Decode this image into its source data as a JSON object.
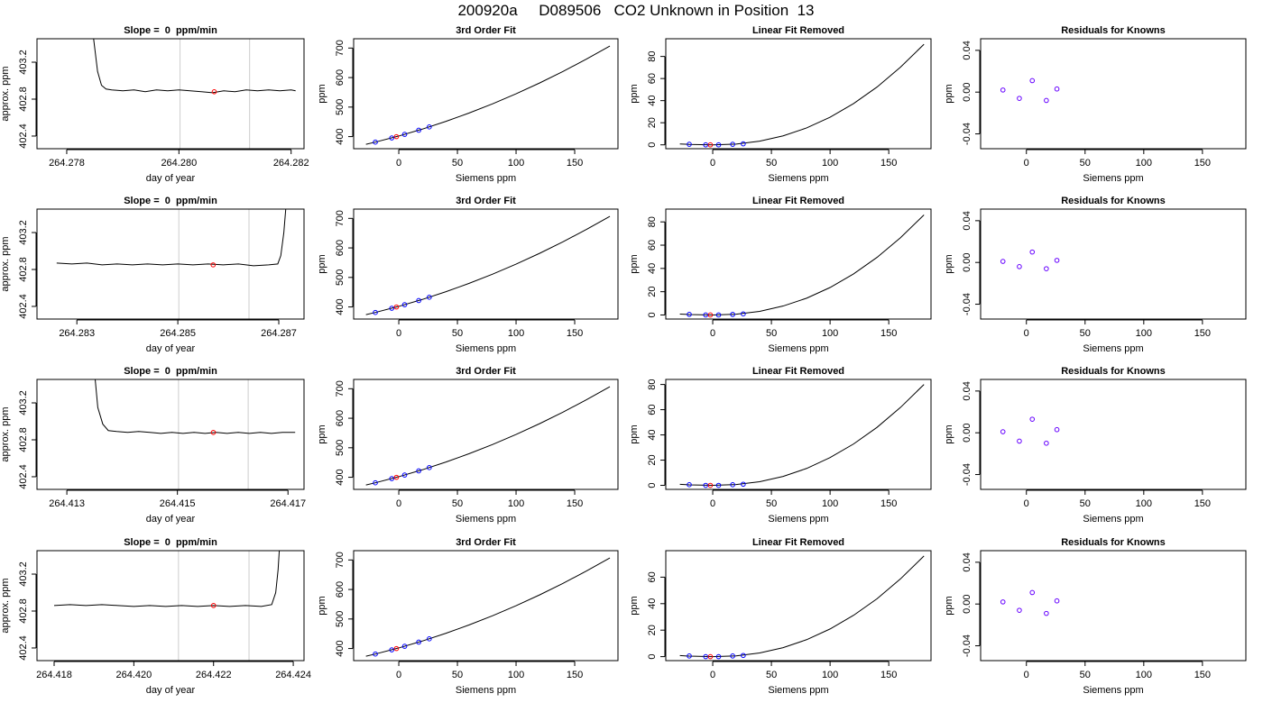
{
  "title": "200920a     D089506   CO2 Unknown in Position  13",
  "chart_data": [
    {
      "type": "line",
      "title": "Slope =  0  ppm/min",
      "xlabel": "day of year",
      "ylabel": "approx. ppm",
      "x": [
        264.27845,
        264.27855,
        264.27862,
        264.2787,
        264.2788,
        264.279,
        264.2792,
        264.2794,
        264.2796,
        264.2798,
        264.28,
        264.2802,
        264.2804,
        264.2806,
        264.2808,
        264.281,
        264.2812,
        264.2814,
        264.2816,
        264.2818,
        264.282,
        264.28208
      ],
      "values": [
        403.6,
        403.1,
        402.95,
        402.91,
        402.9,
        402.89,
        402.9,
        402.88,
        402.9,
        402.89,
        402.9,
        402.89,
        402.88,
        402.87,
        402.89,
        402.88,
        402.9,
        402.89,
        402.9,
        402.89,
        402.9,
        402.89
      ],
      "color": "#000000",
      "vlines": [
        264.28002,
        264.28126
      ],
      "vline_color": "#cccccc",
      "points": [
        {
          "x": [
            264.28063
          ],
          "values": [
            402.88
          ],
          "color": "#ff0000"
        }
      ],
      "xlim": [
        264.27747,
        264.28223
      ],
      "xticks": [
        264.278,
        {
          "value": 264.28,
          "label": "264.280"
        },
        264.282
      ],
      "ylim": [
        402.263,
        403.454
      ],
      "yticks": [
        402.4,
        402.8,
        403.2
      ]
    },
    {
      "type": "line",
      "title": "3rd Order Fit",
      "xlabel": "Siemens ppm",
      "ylabel": "ppm",
      "x": [
        -28,
        -20,
        0,
        20,
        40,
        60,
        80,
        100,
        120,
        140,
        160,
        180
      ],
      "values": [
        373.8,
        381.3,
        402,
        425.3,
        451.3,
        479.9,
        511.1,
        545,
        581.5,
        620.7,
        662.5,
        706.9
      ],
      "color": "#000000",
      "points": [
        {
          "x": [
            -20,
            -6,
            5,
            17,
            26
          ],
          "values": [
            381.3,
            395.5,
            407.6,
            421.7,
            432.8
          ],
          "color": "#0000ff"
        },
        {
          "x": [
            -2
          ],
          "values": [
            399.8
          ],
          "color": "#ff0000"
        }
      ],
      "xlim": [
        -38.5,
        186.9
      ],
      "xticks": [
        0,
        50,
        100,
        150
      ],
      "ylim": [
        359,
        731.5
      ],
      "yticks": [
        400,
        500,
        600,
        700
      ]
    },
    {
      "type": "line",
      "title": "Linear Fit Removed",
      "xlabel": "Siemens ppm",
      "ylabel": "ppm",
      "x": [
        -28,
        -20,
        0,
        20,
        40,
        60,
        80,
        100,
        120,
        140,
        160,
        180
      ],
      "values": [
        0.8,
        0.4,
        0,
        0.7,
        3.3,
        8.1,
        15.3,
        25,
        37.3,
        52.3,
        70.3,
        91
      ],
      "color": "#000000",
      "points": [
        {
          "x": [
            -20,
            -6,
            5,
            17,
            26
          ],
          "values": [
            0.5,
            0,
            0,
            0.5,
            0.9
          ],
          "color": "#0000ff"
        },
        {
          "x": [
            -2
          ],
          "values": [
            0
          ],
          "color": "#ff0000"
        }
      ],
      "xlim": [
        -40,
        186
      ],
      "xticks": [
        0,
        50,
        100,
        150
      ],
      "ylim": [
        -3.5,
        96
      ],
      "yticks": [
        0,
        20,
        40,
        60,
        80
      ]
    },
    {
      "type": "scatter",
      "title": "Residuals for Knowns",
      "xlabel": "Siemens ppm",
      "ylabel": "ppm",
      "points": [
        {
          "x": [
            -20,
            -6,
            5,
            17,
            26
          ],
          "values": [
            0.002,
            -0.006,
            0.011,
            -0.008,
            0.003
          ],
          "color": "#6600ff"
        }
      ],
      "xlim": [
        -39,
        187
      ],
      "xticks": [
        0,
        50,
        100,
        150
      ],
      "ylim": [
        -0.0542,
        0.0511
      ],
      "yticks": [
        -0.04,
        {
          "value": 0,
          "label": "0.00"
        },
        0.04
      ]
    },
    {
      "type": "line",
      "title": "Slope =  0  ppm/min",
      "xlabel": "day of year",
      "ylabel": "approx. ppm",
      "x": [
        264.2826,
        264.2829,
        264.2832,
        264.2835,
        264.2838,
        264.2841,
        264.2844,
        264.2847,
        264.285,
        264.2853,
        264.2856,
        264.2859,
        264.2862,
        264.2865,
        264.2868,
        264.28698,
        264.28704,
        264.2871,
        264.28716
      ],
      "values": [
        402.87,
        402.86,
        402.87,
        402.85,
        402.86,
        402.85,
        402.86,
        402.85,
        402.86,
        402.85,
        402.86,
        402.85,
        402.86,
        402.84,
        402.85,
        402.86,
        402.95,
        403.2,
        403.6
      ],
      "color": "#000000",
      "vlines": [
        264.28502,
        264.28641
      ],
      "vline_color": "#cccccc",
      "points": [
        {
          "x": [
            264.2857
          ],
          "values": [
            402.85
          ],
          "color": "#ff0000"
        }
      ],
      "xlim": [
        264.28221,
        264.2875
      ],
      "xticks": [
        264.283,
        264.285,
        264.287
      ],
      "ylim": [
        402.263,
        403.454
      ],
      "yticks": [
        402.4,
        402.8,
        403.2
      ]
    },
    {
      "type": "line",
      "title": "3rd Order Fit",
      "xlabel": "Siemens ppm",
      "ylabel": "ppm",
      "x": [
        -28,
        -20,
        0,
        20,
        40,
        60,
        80,
        100,
        120,
        140,
        160,
        180
      ],
      "values": [
        373.8,
        381.3,
        402,
        425.3,
        451.3,
        479.9,
        511.1,
        545,
        581.5,
        620.7,
        662.5,
        706.9
      ],
      "color": "#000000",
      "points": [
        {
          "x": [
            -20,
            -6,
            5,
            17,
            26
          ],
          "values": [
            381.3,
            395.5,
            407.6,
            421.7,
            432.8
          ],
          "color": "#0000ff"
        },
        {
          "x": [
            -2
          ],
          "values": [
            399.8
          ],
          "color": "#ff0000"
        }
      ],
      "xlim": [
        -38.5,
        186.9
      ],
      "xticks": [
        0,
        50,
        100,
        150
      ],
      "ylim": [
        359,
        731.5
      ],
      "yticks": [
        400,
        500,
        600,
        700
      ]
    },
    {
      "type": "line",
      "title": "Linear Fit Removed",
      "xlabel": "Siemens ppm",
      "ylabel": "ppm",
      "x": [
        -28,
        -20,
        0,
        20,
        40,
        60,
        80,
        100,
        120,
        140,
        160,
        180
      ],
      "values": [
        0.8,
        0.4,
        0,
        0.7,
        3.1,
        7.7,
        14.4,
        23.6,
        35.3,
        49.5,
        66.4,
        86
      ],
      "color": "#000000",
      "points": [
        {
          "x": [
            -20,
            -6,
            5,
            17,
            26
          ],
          "values": [
            0.5,
            0,
            0,
            0.5,
            0.9
          ],
          "color": "#0000ff"
        },
        {
          "x": [
            -2
          ],
          "values": [
            0
          ],
          "color": "#ff0000"
        }
      ],
      "xlim": [
        -40,
        186
      ],
      "xticks": [
        0,
        50,
        100,
        150
      ],
      "ylim": [
        -3.5,
        91
      ],
      "yticks": [
        0,
        20,
        40,
        60,
        80
      ]
    },
    {
      "type": "scatter",
      "title": "Residuals for Knowns",
      "xlabel": "Siemens ppm",
      "ylabel": "ppm",
      "points": [
        {
          "x": [
            -20,
            -6,
            5,
            17,
            26
          ],
          "values": [
            0.001,
            -0.004,
            0.01,
            -0.006,
            0.002
          ],
          "color": "#6600ff"
        }
      ],
      "xlim": [
        -39,
        187
      ],
      "xticks": [
        0,
        50,
        100,
        150
      ],
      "ylim": [
        -0.0542,
        0.0511
      ],
      "yticks": [
        -0.04,
        {
          "value": 0,
          "label": "0.00"
        },
        0.04
      ]
    },
    {
      "type": "line",
      "title": "Slope =  0  ppm/min",
      "xlabel": "day of year",
      "ylabel": "approx. ppm",
      "x": [
        264.41349,
        264.41356,
        264.41365,
        264.41375,
        264.4139,
        264.4141,
        264.4143,
        264.4145,
        264.4147,
        264.4149,
        264.4151,
        264.4153,
        264.4155,
        264.4157,
        264.4159,
        264.4161,
        264.4163,
        264.4165,
        264.4167,
        264.4169,
        264.41713
      ],
      "values": [
        403.6,
        403.15,
        402.97,
        402.9,
        402.89,
        402.88,
        402.89,
        402.88,
        402.87,
        402.88,
        402.87,
        402.88,
        402.87,
        402.88,
        402.87,
        402.88,
        402.87,
        402.88,
        402.87,
        402.88,
        402.88
      ],
      "color": "#000000",
      "vlines": [
        264.41502,
        264.41628
      ],
      "vline_color": "#cccccc",
      "points": [
        {
          "x": [
            264.41565
          ],
          "values": [
            402.88
          ],
          "color": "#ff0000"
        }
      ],
      "xlim": [
        264.41246,
        264.41729
      ],
      "xticks": [
        264.413,
        264.415,
        264.417
      ],
      "ylim": [
        402.263,
        403.454
      ],
      "yticks": [
        402.4,
        402.8,
        403.2
      ]
    },
    {
      "type": "line",
      "title": "3rd Order Fit",
      "xlabel": "Siemens ppm",
      "ylabel": "ppm",
      "x": [
        -28,
        -20,
        0,
        20,
        40,
        60,
        80,
        100,
        120,
        140,
        160,
        180
      ],
      "values": [
        373.8,
        381.3,
        402,
        425.3,
        451.3,
        479.9,
        511.1,
        545,
        581.5,
        620.7,
        662.5,
        706.9
      ],
      "color": "#000000",
      "points": [
        {
          "x": [
            -20,
            -6,
            5,
            17,
            26
          ],
          "values": [
            381.3,
            395.5,
            407.6,
            421.7,
            432.8
          ],
          "color": "#0000ff"
        },
        {
          "x": [
            -2
          ],
          "values": [
            399.8
          ],
          "color": "#ff0000"
        }
      ],
      "xlim": [
        -38.5,
        186.9
      ],
      "xticks": [
        0,
        50,
        100,
        150
      ],
      "ylim": [
        359,
        731.5
      ],
      "yticks": [
        400,
        500,
        600,
        700
      ]
    },
    {
      "type": "line",
      "title": "Linear Fit Removed",
      "xlabel": "Siemens ppm",
      "ylabel": "ppm",
      "x": [
        -28,
        -20,
        0,
        20,
        40,
        60,
        80,
        100,
        120,
        140,
        160,
        180
      ],
      "values": [
        0.8,
        0.4,
        0,
        0.6,
        2.9,
        7.1,
        13.4,
        22,
        32.8,
        46,
        61.8,
        80
      ],
      "color": "#000000",
      "points": [
        {
          "x": [
            -20,
            -6,
            5,
            17,
            26
          ],
          "values": [
            0.5,
            0,
            0,
            0.5,
            0.9
          ],
          "color": "#0000ff"
        },
        {
          "x": [
            -2
          ],
          "values": [
            0
          ],
          "color": "#ff0000"
        }
      ],
      "xlim": [
        -40,
        186
      ],
      "xticks": [
        0,
        50,
        100,
        150
      ],
      "ylim": [
        -3.2,
        84
      ],
      "yticks": [
        0,
        20,
        40,
        60,
        80
      ]
    },
    {
      "type": "scatter",
      "title": "Residuals for Knowns",
      "xlabel": "Siemens ppm",
      "ylabel": "ppm",
      "points": [
        {
          "x": [
            -20,
            -6,
            5,
            17,
            26
          ],
          "values": [
            0.001,
            -0.008,
            0.013,
            -0.01,
            0.003
          ],
          "color": "#6600ff"
        }
      ],
      "xlim": [
        -39,
        187
      ],
      "xticks": [
        0,
        50,
        100,
        150
      ],
      "ylim": [
        -0.0542,
        0.0511
      ],
      "yticks": [
        -0.04,
        {
          "value": 0,
          "label": "0.00"
        },
        0.04
      ]
    },
    {
      "type": "line",
      "title": "Slope =  0  ppm/min",
      "xlabel": "day of year",
      "ylabel": "approx. ppm",
      "x": [
        264.418,
        264.4184,
        264.4188,
        264.4192,
        264.4196,
        264.42,
        264.4204,
        264.4208,
        264.4212,
        264.4216,
        264.422,
        264.4224,
        264.4228,
        264.4232,
        264.42346,
        264.42356,
        264.42362,
        264.42367
      ],
      "values": [
        402.86,
        402.87,
        402.86,
        402.87,
        402.86,
        402.85,
        402.86,
        402.85,
        402.86,
        402.85,
        402.86,
        402.85,
        402.86,
        402.85,
        402.87,
        403,
        403.25,
        403.6
      ],
      "color": "#000000",
      "vlines": [
        264.42112,
        264.42289
      ],
      "vline_color": "#cccccc",
      "points": [
        {
          "x": [
            264.422
          ],
          "values": [
            402.86
          ],
          "color": "#ff0000"
        }
      ],
      "xlim": [
        264.41757,
        264.42427
      ],
      "xticks": [
        264.418,
        {
          "value": 264.42,
          "label": "264.420"
        },
        264.422,
        264.424
      ],
      "ylim": [
        402.263,
        403.454
      ],
      "yticks": [
        402.4,
        402.8,
        403.2
      ]
    },
    {
      "type": "line",
      "title": "3rd Order Fit",
      "xlabel": "Siemens ppm",
      "ylabel": "ppm",
      "x": [
        -28,
        -20,
        0,
        20,
        40,
        60,
        80,
        100,
        120,
        140,
        160,
        180
      ],
      "values": [
        373.8,
        381.3,
        402,
        425.3,
        451.3,
        479.9,
        511.1,
        545,
        581.5,
        620.7,
        662.5,
        706.9
      ],
      "color": "#000000",
      "points": [
        {
          "x": [
            -20,
            -6,
            5,
            17,
            26
          ],
          "values": [
            381.3,
            395.5,
            407.6,
            421.7,
            432.8
          ],
          "color": "#0000ff"
        },
        {
          "x": [
            -2
          ],
          "values": [
            399.8
          ],
          "color": "#ff0000"
        }
      ],
      "xlim": [
        -38.5,
        186.9
      ],
      "xticks": [
        0,
        50,
        100,
        150
      ],
      "ylim": [
        359,
        731.5
      ],
      "yticks": [
        400,
        500,
        600,
        700
      ]
    },
    {
      "type": "line",
      "title": "Linear Fit Removed",
      "xlabel": "Siemens ppm",
      "ylabel": "ppm",
      "x": [
        -28,
        -20,
        0,
        20,
        40,
        60,
        80,
        100,
        120,
        140,
        160,
        180
      ],
      "values": [
        0.8,
        0.4,
        0,
        0.6,
        2.8,
        6.8,
        12.8,
        20.9,
        31.2,
        43.7,
        58.7,
        76
      ],
      "color": "#000000",
      "points": [
        {
          "x": [
            -20,
            -6,
            5,
            17,
            26
          ],
          "values": [
            0.5,
            0,
            0,
            0.5,
            0.9
          ],
          "color": "#0000ff"
        },
        {
          "x": [
            -2
          ],
          "values": [
            0
          ],
          "color": "#ff0000"
        }
      ],
      "xlim": [
        -40,
        186
      ],
      "xticks": [
        0,
        50,
        100,
        150
      ],
      "ylim": [
        -3,
        80
      ],
      "yticks": [
        0,
        20,
        40,
        60
      ]
    },
    {
      "type": "scatter",
      "title": "Residuals for Knowns",
      "xlabel": "Siemens ppm",
      "ylabel": "ppm",
      "points": [
        {
          "x": [
            -20,
            -6,
            5,
            17,
            26
          ],
          "values": [
            0.002,
            -0.006,
            0.011,
            -0.009,
            0.003
          ],
          "color": "#6600ff"
        }
      ],
      "xlim": [
        -39,
        187
      ],
      "xticks": [
        0,
        50,
        100,
        150
      ],
      "ylim": [
        -0.0542,
        0.0511
      ],
      "yticks": [
        -0.04,
        {
          "value": 0,
          "label": "0.00"
        },
        0.04
      ]
    }
  ]
}
